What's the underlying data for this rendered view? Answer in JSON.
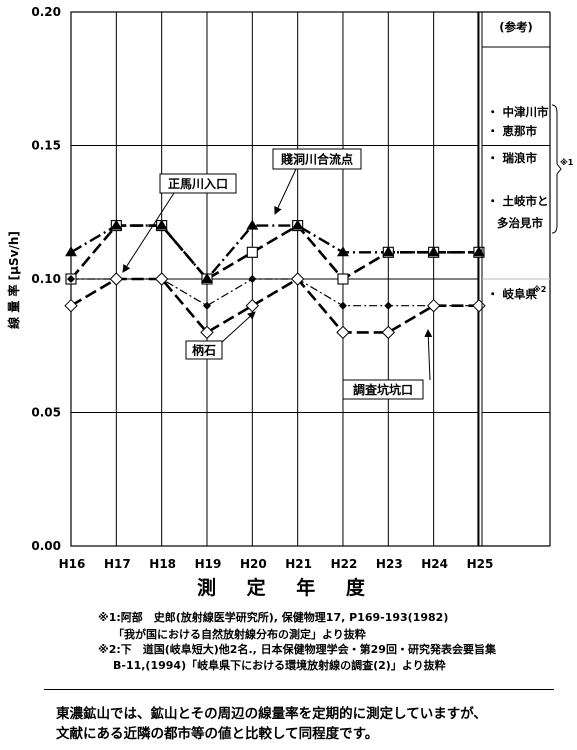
{
  "chart_data": {
    "type": "line",
    "ylabel": "線 量 率 [μSv/h]",
    "xlabel": "測 定 年 度",
    "ylim": [
      0,
      0.2
    ],
    "y_ticks": [
      "0.00",
      "0.05",
      "0.10",
      "0.15",
      "0.20"
    ],
    "y_tick_values": [
      0,
      0.05,
      0.1,
      0.15,
      0.2
    ],
    "categories": [
      "H16",
      "H17",
      "H18",
      "H19",
      "H20",
      "H21",
      "H22",
      "H23",
      "H24",
      "H25"
    ],
    "grid": true,
    "series": [
      {
        "name": "正馬川入口",
        "marker": "open-square",
        "dash": "long-dash",
        "values": [
          0.1,
          0.12,
          0.12,
          0.1,
          0.11,
          0.12,
          0.1,
          0.11,
          0.11,
          0.11
        ]
      },
      {
        "name": "賤洞川合流点",
        "marker": "filled-triangle",
        "dash": "dash-dot",
        "values": [
          0.11,
          0.12,
          0.12,
          0.1,
          0.12,
          0.12,
          0.11,
          0.11,
          0.11,
          0.11
        ]
      },
      {
        "name": "柄石",
        "marker": "filled-diamond",
        "dash": "dash-dot-thin",
        "values": [
          0.1,
          0.1,
          0.1,
          0.09,
          0.1,
          0.1,
          0.09,
          0.09,
          0.09,
          0.09
        ]
      },
      {
        "name": "調査坑坑口",
        "marker": "open-diamond",
        "dash": "long-dash",
        "values": [
          0.09,
          0.1,
          0.1,
          0.08,
          0.09,
          0.1,
          0.08,
          0.08,
          0.09,
          0.09
        ]
      }
    ],
    "callouts": [
      {
        "series": "正馬川入口",
        "text": "正馬川入口"
      },
      {
        "series": "賤洞川合流点",
        "text": "賤洞川合流点"
      },
      {
        "series": "柄石",
        "text": "柄石"
      },
      {
        "series": "調査坑坑口",
        "text": "調査坑坑口"
      }
    ],
    "reference": {
      "title": "(参考)",
      "groups": [
        {
          "items": [
            "・ 中津川市",
            "・ 恵那市",
            "・ 瑞浪市",
            "・ 土岐市と",
            "多治見市"
          ],
          "range": [
            0.1,
            0.15
          ],
          "note": "※1"
        },
        {
          "items": [
            "・ 岐阜県"
          ],
          "value": 0.1,
          "note": "※2"
        }
      ]
    }
  },
  "footnotes": [
    "※1:阿部　史郎(放射線医学研究所), 保健物理17, P169-193(1982)",
    "「我が国における自然放射線分布の測定」より抜粋",
    "※2:下　道国(岐阜短大)他2名., 日本保健物理学会・第29回・研究発表会要旨集",
    "B-11,(1994)「岐阜県下における環境放射線の調査(2)」より抜粋"
  ],
  "summary": [
    "東濃鉱山では、鉱山とその周辺の線量率を定期的に測定していますが、",
    "文献にある近隣の都市等の値と比較して同程度です。"
  ]
}
